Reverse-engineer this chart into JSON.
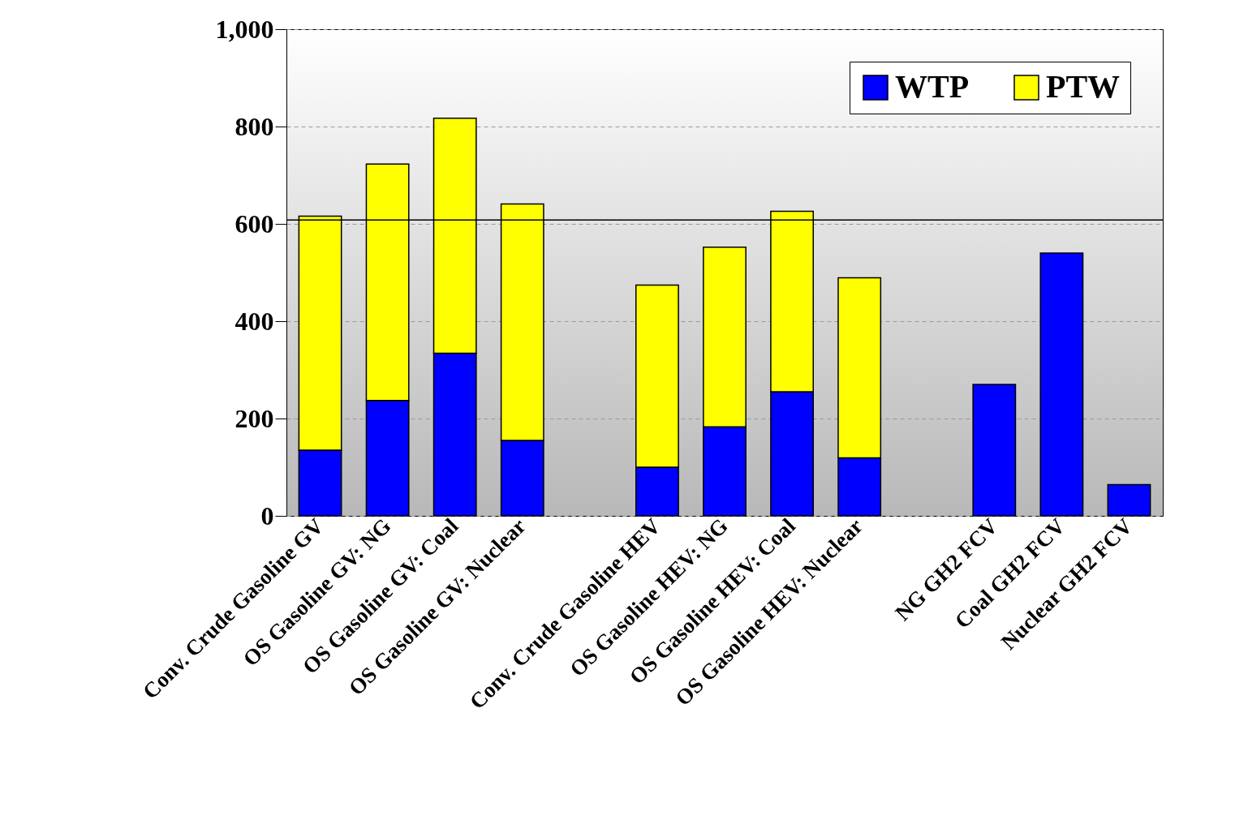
{
  "chart_data": {
    "type": "bar",
    "stacked": true,
    "categories": [
      "Conv. Crude Gasoline GV",
      "OS Gasoline GV: NG",
      "OS Gasoline GV: Coal",
      "OS Gasoline GV: Nuclear",
      null,
      "Conv. Crude Gasoline HEV",
      "OS Gasoline HEV: NG",
      "OS Gasoline HEV: Coal",
      "OS Gasoline HEV: Nuclear",
      null,
      "NG GH2 FCV",
      "Coal GH2 FCV",
      "Nuclear GH2 FCV"
    ],
    "series": [
      {
        "name": "WTP",
        "color": "#0000ff",
        "values": [
          135,
          237,
          334,
          155,
          null,
          100,
          183,
          255,
          119,
          null,
          270,
          540,
          64
        ]
      },
      {
        "name": "PTW",
        "color": "#ffff00",
        "values": [
          481,
          486,
          483,
          486,
          null,
          374,
          369,
          371,
          370,
          null,
          null,
          null,
          null
        ]
      }
    ],
    "ylim": [
      0,
      1000
    ],
    "yticks": [
      0,
      200,
      400,
      600,
      800,
      {
        "value": 1000,
        "label": "1,000"
      }
    ],
    "grid": "y",
    "legend": "top right",
    "ref_lines": [
      {
        "axis": "y",
        "value": 608,
        "color": "#000000"
      }
    ]
  }
}
